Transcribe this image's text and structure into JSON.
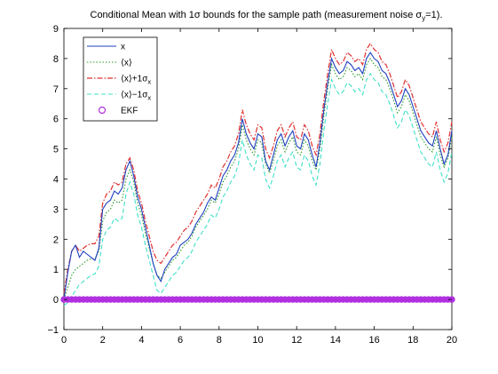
{
  "chart_data": {
    "type": "line",
    "title": {
      "prefix": "Conditional Mean with 1σ bounds for the sample path (measurement noise σ",
      "subscript": "y",
      "suffix": "=1)."
    },
    "xlabel": "",
    "ylabel": "",
    "xlim": [
      0,
      20
    ],
    "ylim": [
      -1,
      9
    ],
    "x_ticks": [
      0,
      2,
      4,
      6,
      8,
      10,
      12,
      14,
      16,
      18,
      20
    ],
    "y_ticks": [
      -1,
      0,
      1,
      2,
      3,
      4,
      5,
      6,
      7,
      8,
      9
    ],
    "grid": false,
    "legend_position": "top-left",
    "legend": [
      {
        "series": "x",
        "text": "x",
        "sub": "",
        "color": "#1f3fbf",
        "style": "solid"
      },
      {
        "series": "mean",
        "text": "⟨x⟩",
        "sub": "",
        "color": "#2a9a2a",
        "style": "dotted"
      },
      {
        "series": "upper",
        "text": "⟨x⟩+1σ",
        "sub": "x",
        "color": "#e03030",
        "style": "dashdot"
      },
      {
        "series": "lower",
        "text": "⟨x⟩−1σ",
        "sub": "x",
        "color": "#40e0c8",
        "style": "dashed"
      },
      {
        "series": "ekf",
        "text": "EKF",
        "sub": "",
        "color": "#b030e0",
        "style": "marker"
      }
    ],
    "x": [
      0,
      0.2,
      0.4,
      0.6,
      0.8,
      1,
      1.2,
      1.4,
      1.6,
      1.8,
      2,
      2.2,
      2.4,
      2.6,
      2.8,
      3,
      3.2,
      3.4,
      3.6,
      3.8,
      4,
      4.2,
      4.4,
      4.6,
      4.8,
      5,
      5.2,
      5.4,
      5.6,
      5.8,
      6,
      6.2,
      6.4,
      6.6,
      6.8,
      7,
      7.2,
      7.4,
      7.6,
      7.8,
      8,
      8.2,
      8.4,
      8.6,
      8.8,
      9,
      9.2,
      9.4,
      9.6,
      9.8,
      10,
      10.2,
      10.4,
      10.6,
      10.8,
      11,
      11.2,
      11.4,
      11.6,
      11.8,
      12,
      12.2,
      12.4,
      12.6,
      12.8,
      13,
      13.2,
      13.4,
      13.6,
      13.8,
      14,
      14.2,
      14.4,
      14.6,
      14.8,
      15,
      15.2,
      15.4,
      15.6,
      15.8,
      16,
      16.2,
      16.4,
      16.6,
      16.8,
      17,
      17.2,
      17.4,
      17.6,
      17.8,
      18,
      18.2,
      18.4,
      18.6,
      18.8,
      19,
      19.2,
      19.4,
      19.6,
      19.8,
      20
    ],
    "series": [
      {
        "name": "x",
        "values": [
          0,
          0.9,
          1.6,
          1.8,
          1.4,
          1.6,
          1.5,
          1.4,
          1.3,
          1.7,
          3.0,
          3.2,
          3.3,
          3.6,
          3.5,
          3.7,
          4.3,
          4.6,
          4.1,
          3.4,
          3.0,
          2.4,
          1.8,
          1.2,
          0.8,
          0.6,
          1.0,
          1.2,
          1.4,
          1.5,
          1.8,
          1.9,
          2.0,
          2.2,
          2.5,
          2.7,
          2.9,
          3.2,
          3.4,
          3.3,
          3.7,
          4.1,
          4.3,
          4.6,
          4.8,
          5.2,
          6.0,
          5.5,
          5.2,
          5.0,
          5.5,
          5.4,
          4.6,
          4.3,
          4.8,
          5.3,
          5.5,
          5.1,
          5.4,
          5.6,
          5.1,
          5.0,
          5.5,
          5.3,
          4.8,
          4.4,
          5.2,
          6.3,
          7.2,
          8.0,
          7.7,
          7.5,
          7.6,
          7.9,
          7.8,
          7.6,
          7.7,
          7.5,
          8.0,
          8.2,
          8.0,
          7.9,
          7.6,
          7.5,
          7.2,
          6.8,
          6.4,
          6.6,
          7.0,
          6.8,
          6.4,
          6.0,
          5.6,
          5.4,
          5.2,
          5.1,
          5.6,
          5.0,
          4.5,
          4.8,
          5.6
        ]
      },
      {
        "name": "mean",
        "values": [
          0,
          0.4,
          0.8,
          1.0,
          1.1,
          1.2,
          1.3,
          1.35,
          1.35,
          1.6,
          2.6,
          2.9,
          3.0,
          3.3,
          3.2,
          3.3,
          4.0,
          4.3,
          3.9,
          3.2,
          2.8,
          2.2,
          1.7,
          1.2,
          0.8,
          0.7,
          0.9,
          1.1,
          1.3,
          1.4,
          1.6,
          1.8,
          1.9,
          2.1,
          2.4,
          2.6,
          2.8,
          3.0,
          3.3,
          3.2,
          3.5,
          3.9,
          4.1,
          4.4,
          4.6,
          5.0,
          5.8,
          5.3,
          5.0,
          4.8,
          5.3,
          5.2,
          4.5,
          4.2,
          4.6,
          5.1,
          5.3,
          4.9,
          5.2,
          5.4,
          4.9,
          4.8,
          5.3,
          5.1,
          4.6,
          4.3,
          5.0,
          6.1,
          7.0,
          7.8,
          7.5,
          7.3,
          7.4,
          7.7,
          7.6,
          7.4,
          7.5,
          7.3,
          7.8,
          8.0,
          7.8,
          7.7,
          7.4,
          7.3,
          7.0,
          6.6,
          6.2,
          6.4,
          6.8,
          6.6,
          6.2,
          5.8,
          5.4,
          5.2,
          5.0,
          4.9,
          5.4,
          4.8,
          4.4,
          4.7,
          5.4
        ]
      },
      {
        "name": "upper",
        "values": [
          0.2,
          1.0,
          1.6,
          1.8,
          1.6,
          1.7,
          1.8,
          1.85,
          1.85,
          2.1,
          3.2,
          3.5,
          3.6,
          3.9,
          3.8,
          3.9,
          4.5,
          4.7,
          4.3,
          3.6,
          3.2,
          2.6,
          2.1,
          1.6,
          1.3,
          1.2,
          1.4,
          1.6,
          1.8,
          1.9,
          2.1,
          2.3,
          2.4,
          2.6,
          2.9,
          3.1,
          3.3,
          3.5,
          3.8,
          3.7,
          4.0,
          4.4,
          4.6,
          4.9,
          5.1,
          5.5,
          6.3,
          5.8,
          5.5,
          5.3,
          5.8,
          5.7,
          5.0,
          4.7,
          5.1,
          5.6,
          5.8,
          5.4,
          5.7,
          5.9,
          5.4,
          5.3,
          5.8,
          5.6,
          5.1,
          4.8,
          5.5,
          6.6,
          7.5,
          8.3,
          8.0,
          7.8,
          7.9,
          8.2,
          8.1,
          7.9,
          8.0,
          7.8,
          8.3,
          8.5,
          8.3,
          8.2,
          7.9,
          7.8,
          7.5,
          7.1,
          6.7,
          6.9,
          7.3,
          7.1,
          6.7,
          6.3,
          5.9,
          5.7,
          5.5,
          5.4,
          5.9,
          5.3,
          4.9,
          5.2,
          5.9
        ]
      },
      {
        "name": "lower",
        "values": [
          -0.2,
          -0.1,
          0.1,
          0.3,
          0.5,
          0.6,
          0.7,
          0.8,
          0.85,
          1.1,
          2.0,
          2.3,
          2.4,
          2.7,
          2.6,
          2.7,
          3.5,
          3.9,
          3.5,
          2.8,
          2.4,
          1.8,
          1.3,
          0.8,
          0.3,
          0.2,
          0.4,
          0.6,
          0.8,
          0.9,
          1.1,
          1.3,
          1.4,
          1.6,
          1.9,
          2.1,
          2.3,
          2.5,
          2.8,
          2.7,
          3.0,
          3.4,
          3.6,
          3.9,
          4.1,
          4.5,
          5.3,
          4.8,
          4.5,
          4.3,
          4.8,
          4.7,
          4.0,
          3.7,
          4.1,
          4.6,
          4.8,
          4.4,
          4.7,
          4.9,
          4.4,
          4.3,
          4.8,
          4.6,
          4.1,
          3.8,
          4.5,
          5.6,
          6.5,
          7.3,
          7.0,
          6.8,
          6.9,
          7.2,
          7.1,
          6.9,
          7.0,
          6.8,
          7.3,
          7.5,
          7.3,
          7.2,
          6.9,
          6.8,
          6.5,
          6.1,
          5.7,
          5.9,
          6.3,
          6.1,
          5.7,
          5.3,
          4.9,
          4.7,
          4.5,
          4.4,
          4.9,
          4.3,
          3.9,
          4.2,
          4.9
        ]
      },
      {
        "name": "ekf",
        "values": [
          0,
          0,
          0,
          0,
          0,
          0,
          0,
          0,
          0,
          0,
          0,
          0,
          0,
          0,
          0,
          0,
          0,
          0,
          0,
          0,
          0,
          0,
          0,
          0,
          0,
          0,
          0,
          0,
          0,
          0,
          0,
          0,
          0,
          0,
          0,
          0,
          0,
          0,
          0,
          0,
          0,
          0,
          0,
          0,
          0,
          0,
          0,
          0,
          0,
          0,
          0,
          0,
          0,
          0,
          0,
          0,
          0,
          0,
          0,
          0,
          0,
          0,
          0,
          0,
          0,
          0,
          0,
          0,
          0,
          0,
          0,
          0,
          0,
          0,
          0,
          0,
          0,
          0,
          0,
          0,
          0,
          0,
          0,
          0,
          0,
          0,
          0,
          0,
          0,
          0,
          0,
          0,
          0,
          0,
          0,
          0,
          0,
          0,
          0,
          0,
          0
        ]
      }
    ]
  }
}
